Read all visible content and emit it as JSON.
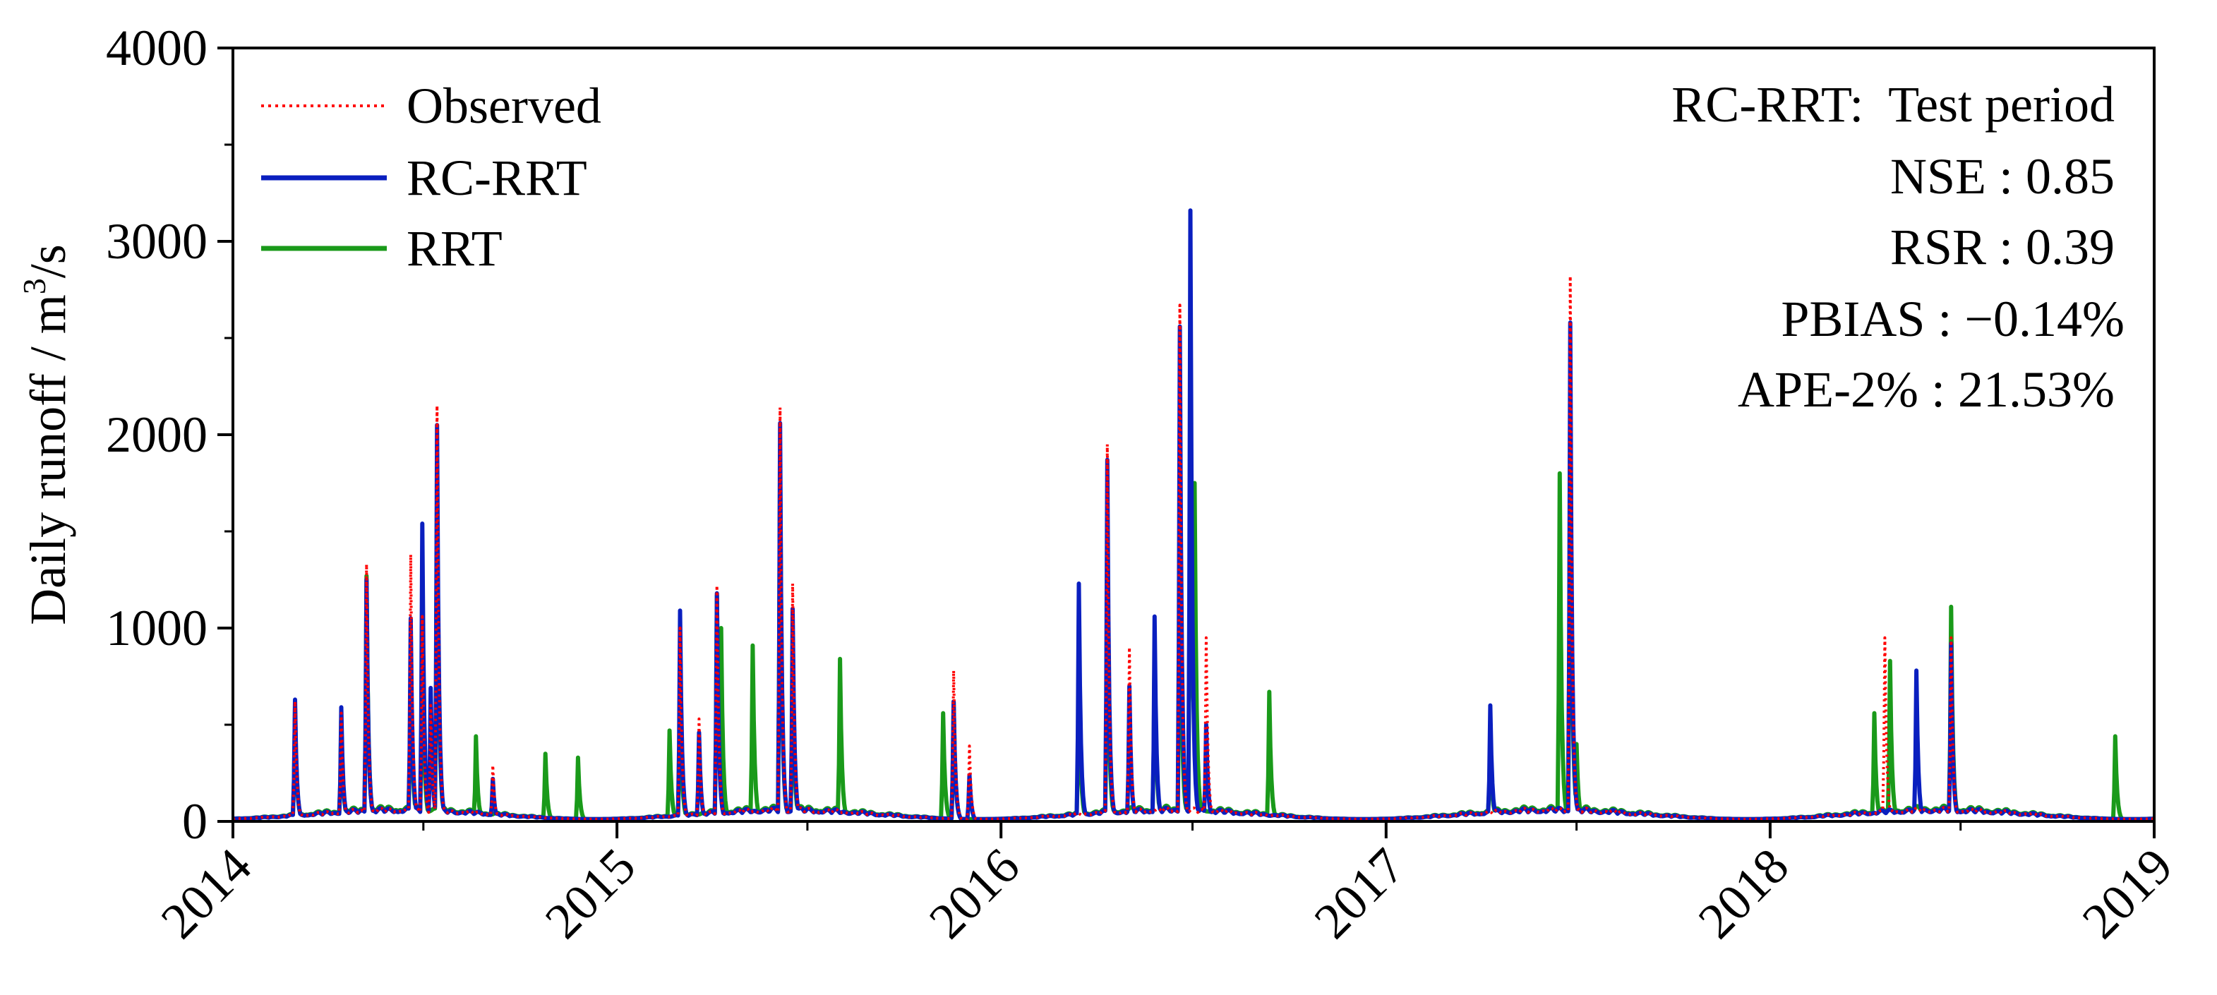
{
  "chart_data": {
    "type": "line",
    "ylabel": "Daily runoff / m",
    "ylabel_sup": "3",
    "ylabel_unit": "/s",
    "xlim": [
      "2014",
      "2019"
    ],
    "ylim": [
      0,
      4000
    ],
    "x_ticks": [
      "2014",
      "2015",
      "2016",
      "2017",
      "2018",
      "2019"
    ],
    "y_ticks": [
      "0",
      "1000",
      "2000",
      "3000",
      "4000"
    ],
    "grid": false,
    "legend_position": "top-left",
    "annotation": {
      "title": "RC-RRT:  Test period",
      "lines": [
        "NSE : 0.85",
        "RSR : 0.39",
        "PBIAS : −0.14%",
        "APE-2% : 21.53%"
      ]
    },
    "series": [
      {
        "name": "Observed",
        "color": "#ff0000",
        "style": "dotted",
        "points": [
          [
            "2014-03-01",
            620
          ],
          [
            "2014-04-14",
            560
          ],
          [
            "2014-05-08",
            1330
          ],
          [
            "2014-06-19",
            1380
          ],
          [
            "2014-06-30",
            1060
          ],
          [
            "2014-07-08",
            600
          ],
          [
            "2014-07-14",
            2150
          ],
          [
            "2014-09-05",
            290
          ],
          [
            "2015-03-02",
            1000
          ],
          [
            "2015-03-20",
            530
          ],
          [
            "2015-04-06",
            1220
          ],
          [
            "2015-06-05",
            2140
          ],
          [
            "2015-06-17",
            1230
          ],
          [
            "2015-11-17",
            780
          ],
          [
            "2015-12-02",
            390
          ],
          [
            "2016-04-11",
            1950
          ],
          [
            "2016-05-02",
            900
          ],
          [
            "2016-06-19",
            2670
          ],
          [
            "2016-07-14",
            950
          ],
          [
            "2017-06-25",
            2820
          ],
          [
            "2018-04-20",
            950
          ],
          [
            "2018-06-22",
            950
          ]
        ]
      },
      {
        "name": "RC-RRT",
        "color": "#0a1fbf",
        "style": "solid",
        "points": [
          [
            "2014-03-01",
            630
          ],
          [
            "2014-04-14",
            590
          ],
          [
            "2014-05-08",
            1250
          ],
          [
            "2014-06-19",
            1050
          ],
          [
            "2014-06-30",
            1540
          ],
          [
            "2014-07-08",
            690
          ],
          [
            "2014-07-14",
            2050
          ],
          [
            "2014-09-05",
            220
          ],
          [
            "2015-03-02",
            1090
          ],
          [
            "2015-03-20",
            460
          ],
          [
            "2015-04-06",
            1180
          ],
          [
            "2015-06-05",
            2060
          ],
          [
            "2015-06-17",
            1100
          ],
          [
            "2015-11-17",
            620
          ],
          [
            "2015-12-02",
            240
          ],
          [
            "2016-03-15",
            1230
          ],
          [
            "2016-04-11",
            1870
          ],
          [
            "2016-05-02",
            700
          ],
          [
            "2016-05-26",
            1060
          ],
          [
            "2016-06-19",
            2560
          ],
          [
            "2016-06-29",
            3160
          ],
          [
            "2016-07-14",
            500
          ],
          [
            "2017-04-10",
            600
          ],
          [
            "2017-06-25",
            2580
          ],
          [
            "2018-05-20",
            780
          ],
          [
            "2018-06-22",
            920
          ]
        ]
      },
      {
        "name": "RRT",
        "color": "#1a9a1a",
        "style": "solid",
        "points": [
          [
            "2014-03-01",
            590
          ],
          [
            "2014-04-14",
            530
          ],
          [
            "2014-05-08",
            1270
          ],
          [
            "2014-06-19",
            840
          ],
          [
            "2014-06-30",
            1000
          ],
          [
            "2014-07-14",
            1770
          ],
          [
            "2014-08-20",
            440
          ],
          [
            "2014-10-25",
            350
          ],
          [
            "2014-11-25",
            330
          ],
          [
            "2015-02-20",
            470
          ],
          [
            "2015-03-02",
            700
          ],
          [
            "2015-04-06",
            1170
          ],
          [
            "2015-04-10",
            1000
          ],
          [
            "2015-05-10",
            910
          ],
          [
            "2015-06-05",
            1910
          ],
          [
            "2015-06-17",
            790
          ],
          [
            "2015-08-01",
            840
          ],
          [
            "2015-11-07",
            560
          ],
          [
            "2015-11-17",
            620
          ],
          [
            "2016-03-15",
            800
          ],
          [
            "2016-04-11",
            1320
          ],
          [
            "2016-05-26",
            890
          ],
          [
            "2016-06-19",
            1600
          ],
          [
            "2016-06-29",
            2310
          ],
          [
            "2016-07-03",
            1750
          ],
          [
            "2016-09-12",
            670
          ],
          [
            "2017-04-10",
            450
          ],
          [
            "2017-06-15",
            1800
          ],
          [
            "2017-06-25",
            2180
          ],
          [
            "2017-07-01",
            400
          ],
          [
            "2018-04-10",
            560
          ],
          [
            "2018-04-25",
            830
          ],
          [
            "2018-06-22",
            1110
          ],
          [
            "2018-11-25",
            440
          ]
        ]
      }
    ]
  }
}
